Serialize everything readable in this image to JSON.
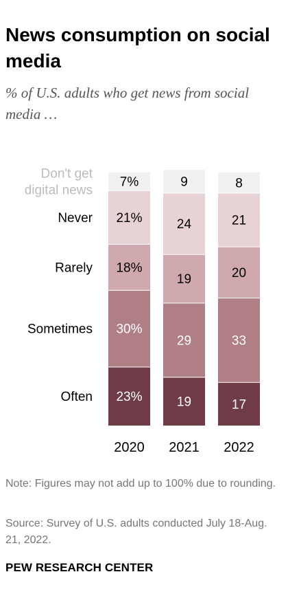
{
  "header": {
    "title": "News consumption on social media",
    "subtitle": "% of U.S. adults who get news from social media …"
  },
  "chart_data": {
    "type": "bar",
    "stacked": true,
    "orientation": "vertical",
    "categories": [
      "2020",
      "2021",
      "2022"
    ],
    "series": [
      {
        "name": "Often",
        "values": [
          23,
          19,
          17
        ],
        "labels": [
          "23%",
          "19",
          "17"
        ],
        "color": "#6e3b47"
      },
      {
        "name": "Sometimes",
        "values": [
          30,
          29,
          33
        ],
        "labels": [
          "30%",
          "29",
          "33"
        ],
        "color": "#b07f86"
      },
      {
        "name": "Rarely",
        "values": [
          18,
          19,
          20
        ],
        "labels": [
          "18%",
          "19",
          "20"
        ],
        "color": "#d0a9ae"
      },
      {
        "name": "Never",
        "values": [
          21,
          24,
          21
        ],
        "labels": [
          "21%",
          "24",
          "21"
        ],
        "color": "#e7d2d5"
      },
      {
        "name": "Don't get digital news",
        "values": [
          7,
          9,
          8
        ],
        "labels": [
          "7%",
          "9",
          "8"
        ],
        "color": "#f1f1f1"
      }
    ],
    "legend_label_lines": {
      "Don't get digital news": [
        "Don't get",
        "digital news"
      ]
    },
    "legend_colors": {
      "Often": "#000000",
      "Sometimes": "#000000",
      "Rarely": "#000000",
      "Never": "#000000",
      "Don't get digital news": "#bbbbbb"
    },
    "ylim": [
      0,
      100
    ],
    "title": "News consumption on social media",
    "xlabel": "",
    "ylabel": ""
  },
  "footer": {
    "note": "Note: Figures may not add up to 100% due to rounding.",
    "source": "Source: Survey of U.S. adults conducted July 18-Aug. 21, 2022.",
    "brand": "PEW RESEARCH CENTER"
  }
}
